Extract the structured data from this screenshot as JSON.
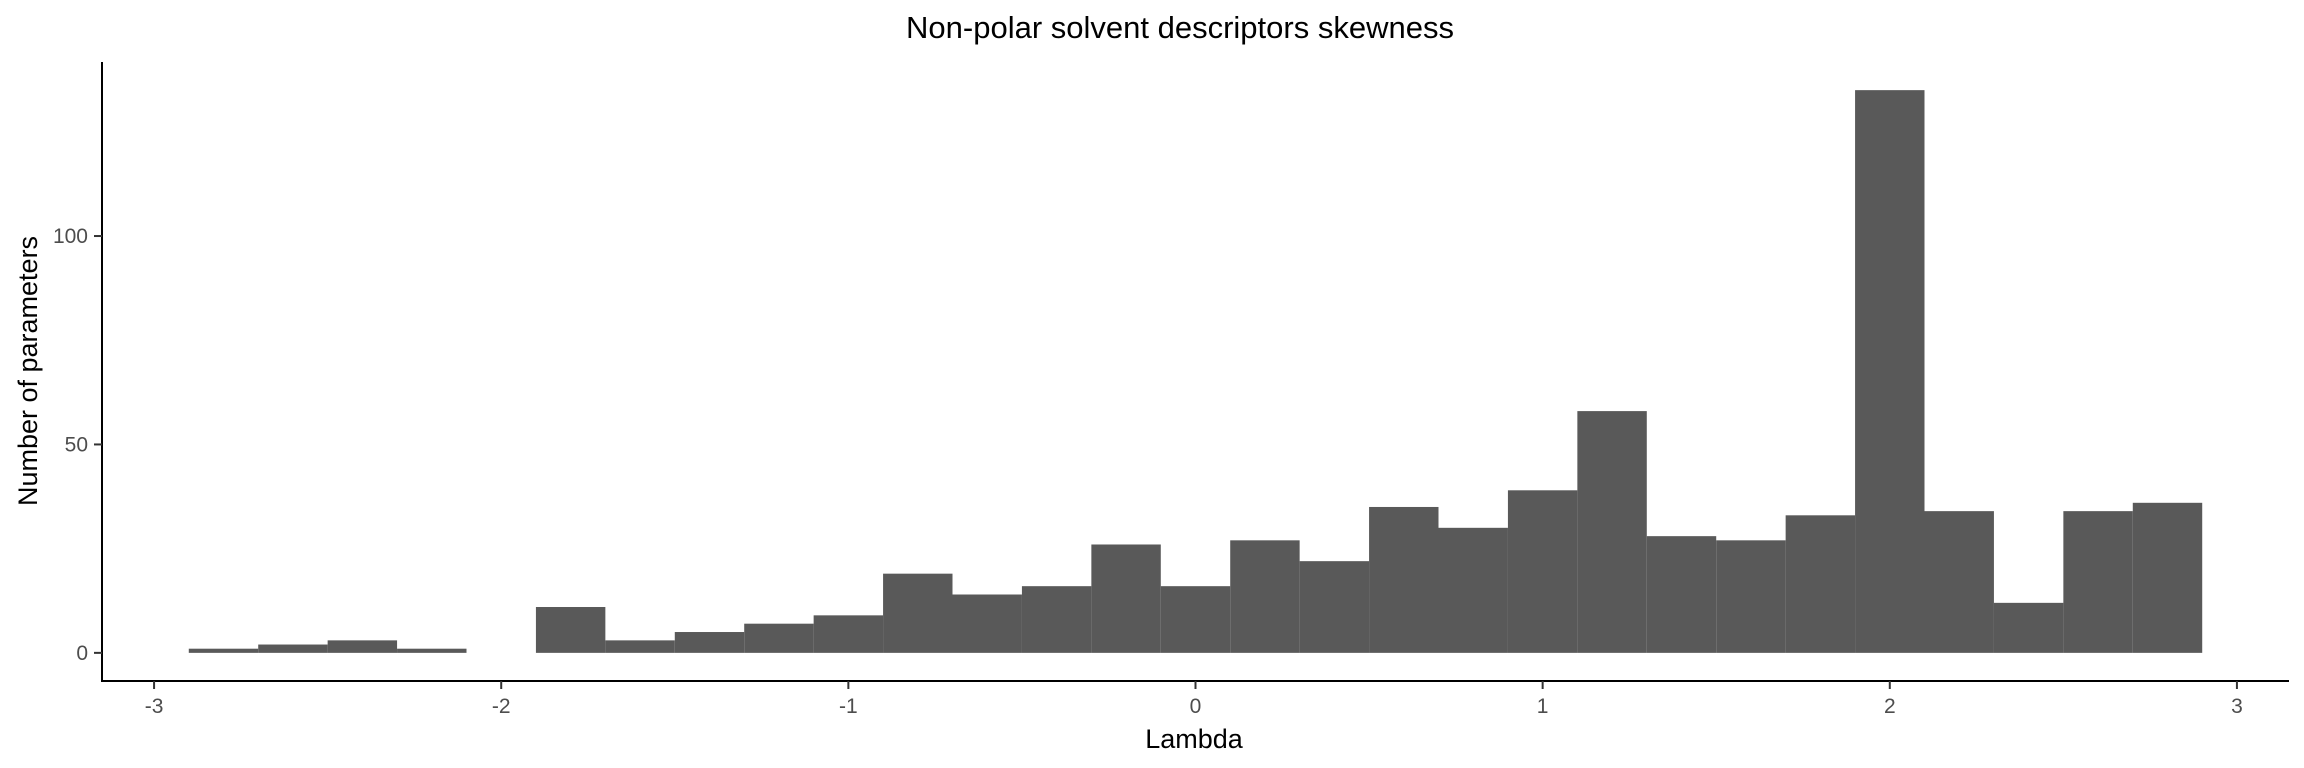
{
  "chart_data": {
    "type": "bar",
    "title": "Non-polar solvent descriptors skewness",
    "xlabel": "Lambda",
    "ylabel": "Number of parameters",
    "bin_width": 0.2,
    "bin_centers": [
      -2.8,
      -2.6,
      -2.4,
      -2.2,
      -2.0,
      -1.8,
      -1.6,
      -1.4,
      -1.2,
      -1.0,
      -0.8,
      -0.6,
      -0.4,
      -0.2,
      0.0,
      0.2,
      0.4,
      0.6,
      0.8,
      1.0,
      1.2,
      1.4,
      1.6,
      1.8,
      2.0,
      2.2,
      2.4,
      2.6,
      2.8
    ],
    "values": [
      1,
      2,
      3,
      1,
      0,
      11,
      3,
      5,
      7,
      9,
      19,
      14,
      16,
      26,
      16,
      27,
      22,
      35,
      30,
      39,
      58,
      28,
      27,
      33,
      135,
      34,
      12,
      34,
      36
    ],
    "xlim": [
      -3.15,
      3.15
    ],
    "ylim": [
      -6.75,
      141.75
    ],
    "x_ticks": [
      -3,
      -2,
      -1,
      0,
      1,
      2,
      3
    ],
    "x_tick_labels": [
      "-3",
      "-2",
      "-1",
      "0",
      "1",
      "2",
      "3"
    ],
    "y_ticks": [
      0,
      50,
      100
    ],
    "y_tick_labels": [
      "0",
      "50",
      "100"
    ],
    "bar_color": "#595959",
    "grid": false,
    "legend": "none"
  }
}
